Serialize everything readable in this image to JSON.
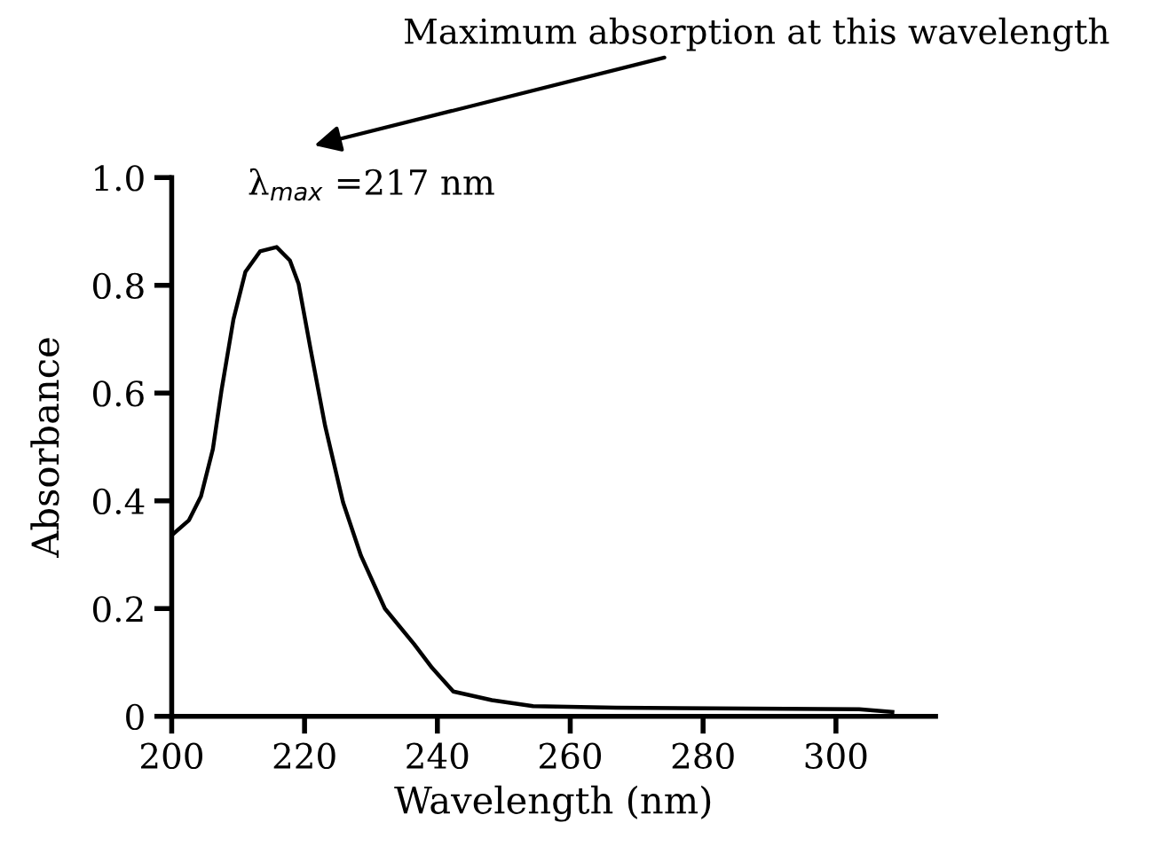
{
  "chart_data": {
    "type": "line",
    "xlabel": "Wavelength (nm)",
    "ylabel": "Absorbance",
    "x": [
      200,
      202.6,
      204.4,
      206.2,
      207.5,
      209.3,
      211.1,
      213.3,
      215.8,
      217.8,
      219.1,
      220.9,
      223.1,
      225.8,
      228.5,
      232.1,
      236.5,
      239.2,
      242.4,
      248.2,
      254.4,
      266.9,
      303.5,
      308.5
    ],
    "series": [
      {
        "color": "#000000",
        "values": [
          0.336,
          0.364,
          0.408,
          0.496,
          0.605,
          0.737,
          0.825,
          0.863,
          0.871,
          0.846,
          0.803,
          0.682,
          0.539,
          0.397,
          0.298,
          0.2,
          0.134,
          0.09,
          0.046,
          0.03,
          0.019,
          0.016,
          0.013,
          0.008
        ]
      }
    ],
    "xlim": [
      200,
      315
    ],
    "xticks": [
      200,
      220,
      240,
      260,
      280,
      300
    ],
    "ylim": [
      0,
      1.0
    ],
    "yticks": [
      0,
      0.2,
      0.4,
      0.6,
      0.8,
      {
        "value": 1.0,
        "label": "1.0"
      }
    ],
    "grid": false,
    "marker": "none",
    "line_style": "solid",
    "annotations": [
      "Maximum absorption at this wavelength",
      "λ$_{max}$ =217 nm"
    ]
  }
}
